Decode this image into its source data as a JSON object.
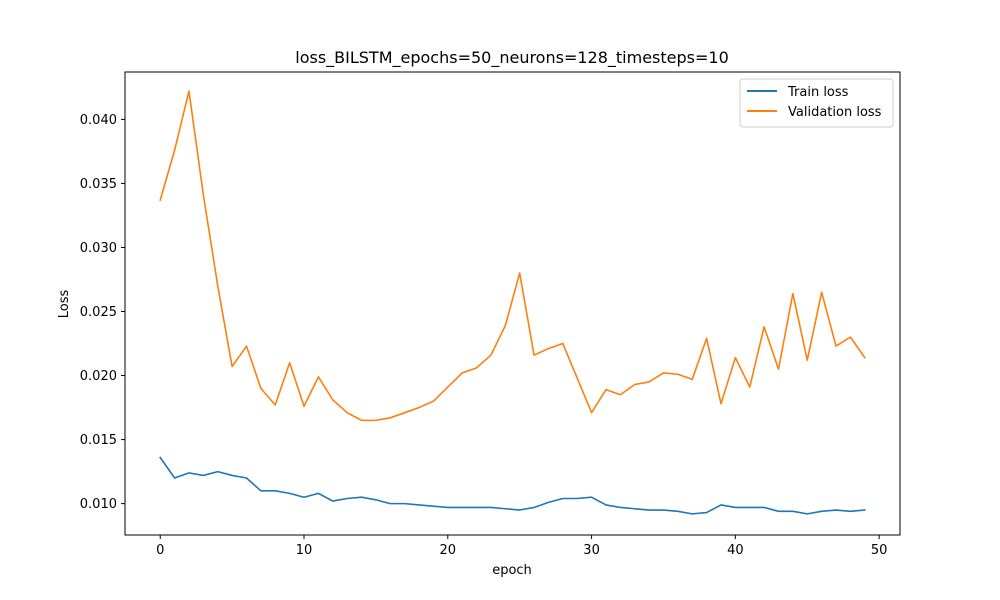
{
  "chart_data": {
    "type": "line",
    "title": "loss_BILSTM_epochs=50_neurons=128_timesteps=10",
    "xlabel": "epoch",
    "ylabel": "Loss",
    "xlim": [
      -2.45,
      51.45
    ],
    "ylim": [
      0.00755,
      0.0437
    ],
    "xticks": [
      0,
      10,
      20,
      30,
      40,
      50
    ],
    "yticks": [
      0.01,
      0.015,
      0.02,
      0.025,
      0.03,
      0.035,
      0.04
    ],
    "ytick_labels": [
      "0.010",
      "0.015",
      "0.020",
      "0.025",
      "0.030",
      "0.035",
      "0.040"
    ],
    "grid": false,
    "legend": "top-right",
    "x": [
      0,
      1,
      2,
      3,
      4,
      5,
      6,
      7,
      8,
      9,
      10,
      11,
      12,
      13,
      14,
      15,
      16,
      17,
      18,
      19,
      20,
      21,
      22,
      23,
      24,
      25,
      26,
      27,
      28,
      29,
      30,
      31,
      32,
      33,
      34,
      35,
      36,
      37,
      38,
      39,
      40,
      41,
      42,
      43,
      44,
      45,
      46,
      47,
      48,
      49
    ],
    "series": [
      {
        "name": "Train loss",
        "color": "#1f77b4",
        "values": [
          0.0136,
          0.012,
          0.0124,
          0.0122,
          0.0125,
          0.0122,
          0.012,
          0.011,
          0.011,
          0.0108,
          0.0105,
          0.0108,
          0.0102,
          0.0104,
          0.0105,
          0.0103,
          0.01,
          0.01,
          0.0099,
          0.0098,
          0.0097,
          0.0097,
          0.0097,
          0.0097,
          0.0096,
          0.0095,
          0.0097,
          0.0101,
          0.0104,
          0.0104,
          0.0105,
          0.0099,
          0.0097,
          0.0096,
          0.0095,
          0.0095,
          0.0094,
          0.0092,
          0.0093,
          0.0099,
          0.0097,
          0.0097,
          0.0097,
          0.0094,
          0.0094,
          0.0092,
          0.0094,
          0.0095,
          0.0094,
          0.0095
        ]
      },
      {
        "name": "Validation loss",
        "color": "#ff7f0e",
        "values": [
          0.0337,
          0.0376,
          0.0422,
          0.0341,
          0.027,
          0.0207,
          0.0223,
          0.019,
          0.0177,
          0.021,
          0.0176,
          0.0199,
          0.0181,
          0.0171,
          0.0165,
          0.0165,
          0.0167,
          0.0171,
          0.0175,
          0.018,
          0.0191,
          0.0202,
          0.0206,
          0.0216,
          0.0239,
          0.028,
          0.0216,
          0.0221,
          0.0225,
          0.0198,
          0.0171,
          0.0189,
          0.0185,
          0.0193,
          0.0195,
          0.0202,
          0.0201,
          0.0197,
          0.0229,
          0.0178,
          0.0214,
          0.0191,
          0.0238,
          0.0205,
          0.0264,
          0.0212,
          0.0265,
          0.0223,
          0.023,
          0.0214
        ]
      }
    ]
  }
}
